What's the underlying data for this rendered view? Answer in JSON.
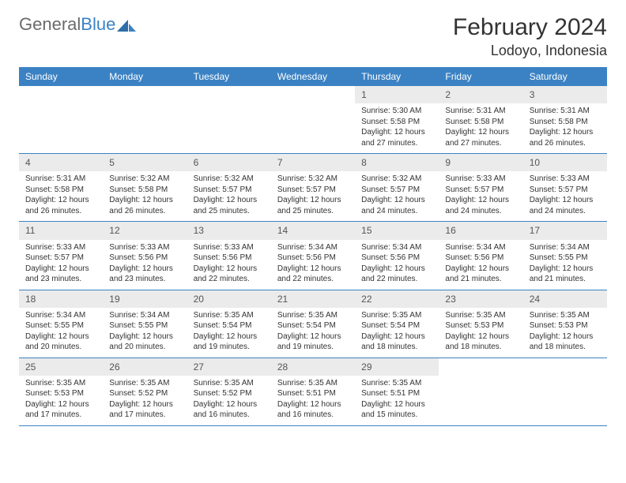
{
  "brand": {
    "name_a": "General",
    "name_b": "Blue"
  },
  "title": "February 2024",
  "location": "Lodoyo, Indonesia",
  "header_bg": "#3b82c4",
  "header_fg": "#ffffff",
  "daynum_bg": "#ebebeb",
  "border_color": "#3b82c4",
  "day_names": [
    "Sunday",
    "Monday",
    "Tuesday",
    "Wednesday",
    "Thursday",
    "Friday",
    "Saturday"
  ],
  "weeks": [
    [
      {
        "n": "",
        "sr": "",
        "ss": "",
        "dl": ""
      },
      {
        "n": "",
        "sr": "",
        "ss": "",
        "dl": ""
      },
      {
        "n": "",
        "sr": "",
        "ss": "",
        "dl": ""
      },
      {
        "n": "",
        "sr": "",
        "ss": "",
        "dl": ""
      },
      {
        "n": "1",
        "sr": "Sunrise: 5:30 AM",
        "ss": "Sunset: 5:58 PM",
        "dl": "Daylight: 12 hours and 27 minutes."
      },
      {
        "n": "2",
        "sr": "Sunrise: 5:31 AM",
        "ss": "Sunset: 5:58 PM",
        "dl": "Daylight: 12 hours and 27 minutes."
      },
      {
        "n": "3",
        "sr": "Sunrise: 5:31 AM",
        "ss": "Sunset: 5:58 PM",
        "dl": "Daylight: 12 hours and 26 minutes."
      }
    ],
    [
      {
        "n": "4",
        "sr": "Sunrise: 5:31 AM",
        "ss": "Sunset: 5:58 PM",
        "dl": "Daylight: 12 hours and 26 minutes."
      },
      {
        "n": "5",
        "sr": "Sunrise: 5:32 AM",
        "ss": "Sunset: 5:58 PM",
        "dl": "Daylight: 12 hours and 26 minutes."
      },
      {
        "n": "6",
        "sr": "Sunrise: 5:32 AM",
        "ss": "Sunset: 5:57 PM",
        "dl": "Daylight: 12 hours and 25 minutes."
      },
      {
        "n": "7",
        "sr": "Sunrise: 5:32 AM",
        "ss": "Sunset: 5:57 PM",
        "dl": "Daylight: 12 hours and 25 minutes."
      },
      {
        "n": "8",
        "sr": "Sunrise: 5:32 AM",
        "ss": "Sunset: 5:57 PM",
        "dl": "Daylight: 12 hours and 24 minutes."
      },
      {
        "n": "9",
        "sr": "Sunrise: 5:33 AM",
        "ss": "Sunset: 5:57 PM",
        "dl": "Daylight: 12 hours and 24 minutes."
      },
      {
        "n": "10",
        "sr": "Sunrise: 5:33 AM",
        "ss": "Sunset: 5:57 PM",
        "dl": "Daylight: 12 hours and 24 minutes."
      }
    ],
    [
      {
        "n": "11",
        "sr": "Sunrise: 5:33 AM",
        "ss": "Sunset: 5:57 PM",
        "dl": "Daylight: 12 hours and 23 minutes."
      },
      {
        "n": "12",
        "sr": "Sunrise: 5:33 AM",
        "ss": "Sunset: 5:56 PM",
        "dl": "Daylight: 12 hours and 23 minutes."
      },
      {
        "n": "13",
        "sr": "Sunrise: 5:33 AM",
        "ss": "Sunset: 5:56 PM",
        "dl": "Daylight: 12 hours and 22 minutes."
      },
      {
        "n": "14",
        "sr": "Sunrise: 5:34 AM",
        "ss": "Sunset: 5:56 PM",
        "dl": "Daylight: 12 hours and 22 minutes."
      },
      {
        "n": "15",
        "sr": "Sunrise: 5:34 AM",
        "ss": "Sunset: 5:56 PM",
        "dl": "Daylight: 12 hours and 22 minutes."
      },
      {
        "n": "16",
        "sr": "Sunrise: 5:34 AM",
        "ss": "Sunset: 5:56 PM",
        "dl": "Daylight: 12 hours and 21 minutes."
      },
      {
        "n": "17",
        "sr": "Sunrise: 5:34 AM",
        "ss": "Sunset: 5:55 PM",
        "dl": "Daylight: 12 hours and 21 minutes."
      }
    ],
    [
      {
        "n": "18",
        "sr": "Sunrise: 5:34 AM",
        "ss": "Sunset: 5:55 PM",
        "dl": "Daylight: 12 hours and 20 minutes."
      },
      {
        "n": "19",
        "sr": "Sunrise: 5:34 AM",
        "ss": "Sunset: 5:55 PM",
        "dl": "Daylight: 12 hours and 20 minutes."
      },
      {
        "n": "20",
        "sr": "Sunrise: 5:35 AM",
        "ss": "Sunset: 5:54 PM",
        "dl": "Daylight: 12 hours and 19 minutes."
      },
      {
        "n": "21",
        "sr": "Sunrise: 5:35 AM",
        "ss": "Sunset: 5:54 PM",
        "dl": "Daylight: 12 hours and 19 minutes."
      },
      {
        "n": "22",
        "sr": "Sunrise: 5:35 AM",
        "ss": "Sunset: 5:54 PM",
        "dl": "Daylight: 12 hours and 18 minutes."
      },
      {
        "n": "23",
        "sr": "Sunrise: 5:35 AM",
        "ss": "Sunset: 5:53 PM",
        "dl": "Daylight: 12 hours and 18 minutes."
      },
      {
        "n": "24",
        "sr": "Sunrise: 5:35 AM",
        "ss": "Sunset: 5:53 PM",
        "dl": "Daylight: 12 hours and 18 minutes."
      }
    ],
    [
      {
        "n": "25",
        "sr": "Sunrise: 5:35 AM",
        "ss": "Sunset: 5:53 PM",
        "dl": "Daylight: 12 hours and 17 minutes."
      },
      {
        "n": "26",
        "sr": "Sunrise: 5:35 AM",
        "ss": "Sunset: 5:52 PM",
        "dl": "Daylight: 12 hours and 17 minutes."
      },
      {
        "n": "27",
        "sr": "Sunrise: 5:35 AM",
        "ss": "Sunset: 5:52 PM",
        "dl": "Daylight: 12 hours and 16 minutes."
      },
      {
        "n": "28",
        "sr": "Sunrise: 5:35 AM",
        "ss": "Sunset: 5:51 PM",
        "dl": "Daylight: 12 hours and 16 minutes."
      },
      {
        "n": "29",
        "sr": "Sunrise: 5:35 AM",
        "ss": "Sunset: 5:51 PM",
        "dl": "Daylight: 12 hours and 15 minutes."
      },
      {
        "n": "",
        "sr": "",
        "ss": "",
        "dl": ""
      },
      {
        "n": "",
        "sr": "",
        "ss": "",
        "dl": ""
      }
    ]
  ]
}
